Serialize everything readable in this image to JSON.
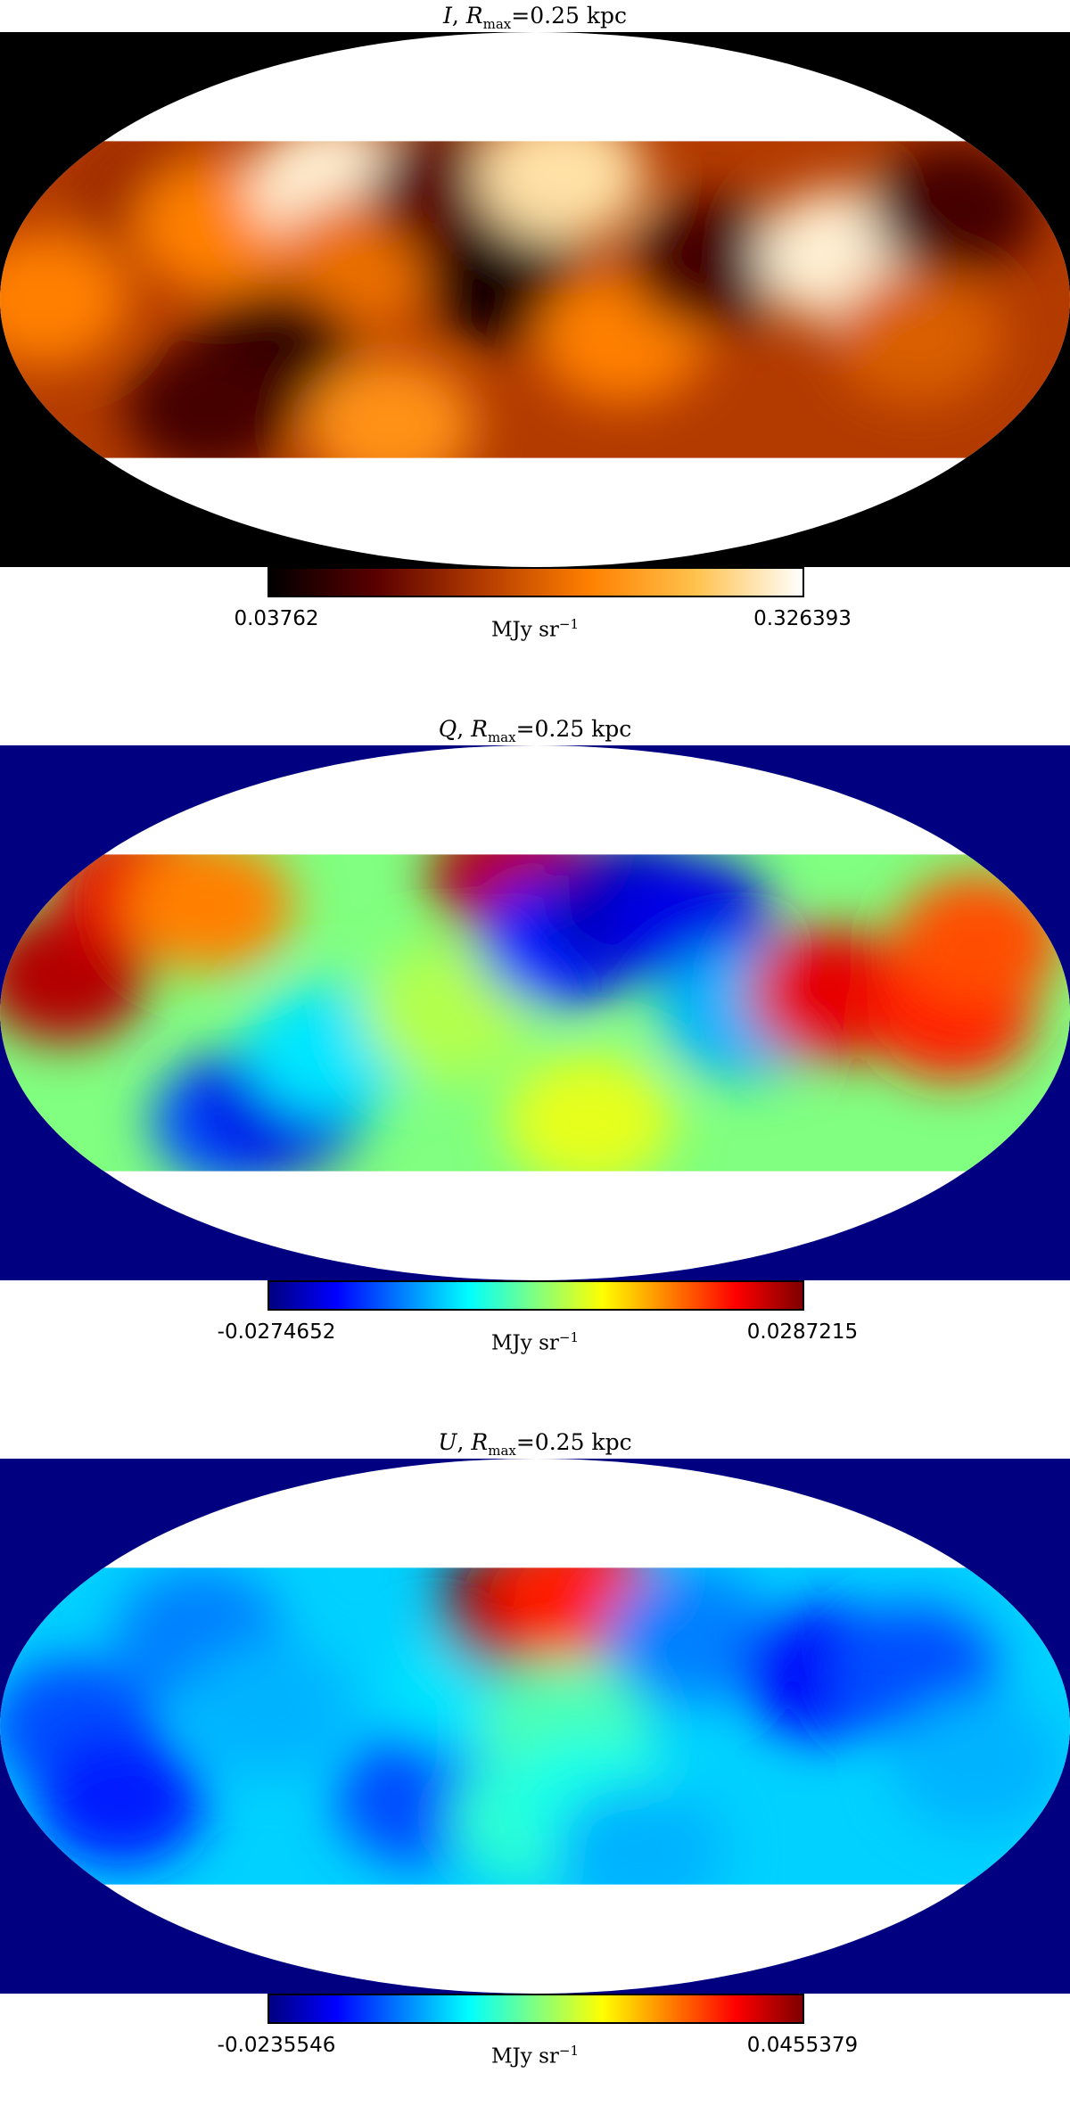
{
  "chart_data": [
    {
      "type": "heatmap",
      "title": {
        "symbol": "I",
        "sep": ",",
        "r": "R",
        "sub": "max",
        "value": "=0.25 kpc"
      },
      "colorbar": {
        "min": "0.03762",
        "max": "0.326393",
        "unit": "MJy sr",
        "unit_exp": "−1",
        "colormap": "afmhot"
      },
      "projection": "mollweide",
      "outside_color": "#000000",
      "latitude_band": [
        -45,
        45
      ],
      "blobs": [
        {
          "lon": 140,
          "lat": 30,
          "level": 0.35
        },
        {
          "lon": 110,
          "lat": 20,
          "level": 0.6
        },
        {
          "lon": 75,
          "lat": 32,
          "level": 0.95
        },
        {
          "lon": 60,
          "lat": 10,
          "level": 0.55
        },
        {
          "lon": 30,
          "lat": 30,
          "level": 0.2
        },
        {
          "lon": 10,
          "lat": 5,
          "level": 0.05
        },
        {
          "lon": -10,
          "lat": 35,
          "level": 0.9
        },
        {
          "lon": -30,
          "lat": -10,
          "level": 0.6
        },
        {
          "lon": -60,
          "lat": 10,
          "level": 0.15
        },
        {
          "lon": -105,
          "lat": 12,
          "level": 0.95
        },
        {
          "lon": -130,
          "lat": -10,
          "level": 0.5
        },
        {
          "lon": -150,
          "lat": 25,
          "level": 0.15
        },
        {
          "lon": 90,
          "lat": -15,
          "level": 0.1
        },
        {
          "lon": 55,
          "lat": -35,
          "level": 0.65
        },
        {
          "lon": 120,
          "lat": -30,
          "level": 0.15
        },
        {
          "lon": 165,
          "lat": 0,
          "level": 0.6
        }
      ],
      "background_level": 0.4
    },
    {
      "type": "heatmap",
      "title": {
        "symbol": "Q",
        "sep": ",",
        "r": "R",
        "sub": "max",
        "value": "=0.25 kpc"
      },
      "colorbar": {
        "min": "-0.0274652",
        "max": "0.0287215",
        "unit": "MJy sr",
        "unit_exp": "−1",
        "colormap": "jet"
      },
      "projection": "mollweide",
      "outside_color": "#000080",
      "latitude_band": [
        -45,
        45
      ],
      "blobs": [
        {
          "lon": 160,
          "lat": 10,
          "level": 0.95
        },
        {
          "lon": 150,
          "lat": 35,
          "level": 0.9
        },
        {
          "lon": 120,
          "lat": 30,
          "level": 0.75
        },
        {
          "lon": 110,
          "lat": -30,
          "level": 0.2
        },
        {
          "lon": 90,
          "lat": -25,
          "level": 0.1
        },
        {
          "lon": 70,
          "lat": -10,
          "level": 0.35
        },
        {
          "lon": 30,
          "lat": 0,
          "level": 0.55
        },
        {
          "lon": 8,
          "lat": 38,
          "level": 0.95
        },
        {
          "lon": -10,
          "lat": 20,
          "level": 0.15
        },
        {
          "lon": -35,
          "lat": 30,
          "level": 0.05
        },
        {
          "lon": -55,
          "lat": 25,
          "level": 0.1
        },
        {
          "lon": -70,
          "lat": 0,
          "level": 0.3
        },
        {
          "lon": -100,
          "lat": 5,
          "level": 0.9
        },
        {
          "lon": -140,
          "lat": 0,
          "level": 0.85
        },
        {
          "lon": -155,
          "lat": 20,
          "level": 0.8
        },
        {
          "lon": -20,
          "lat": -30,
          "level": 0.6
        }
      ],
      "background_level": 0.5
    },
    {
      "type": "heatmap",
      "title": {
        "symbol": "U",
        "sep": ",",
        "r": "R",
        "sub": "max",
        "value": "=0.25 kpc"
      },
      "colorbar": {
        "min": "-0.0235546",
        "max": "0.0455379",
        "unit": "MJy sr",
        "unit_exp": "−1",
        "colormap": "jet"
      },
      "projection": "mollweide",
      "outside_color": "#000080",
      "latitude_band": [
        -45,
        45
      ],
      "blobs": [
        {
          "lon": 155,
          "lat": 0,
          "level": 0.2
        },
        {
          "lon": 145,
          "lat": -20,
          "level": 0.15
        },
        {
          "lon": 120,
          "lat": 25,
          "level": 0.25
        },
        {
          "lon": 90,
          "lat": 5,
          "level": 0.3
        },
        {
          "lon": 40,
          "lat": -20,
          "level": 0.2
        },
        {
          "lon": 20,
          "lat": 10,
          "level": 0.35
        },
        {
          "lon": 5,
          "lat": 33,
          "level": 1.0
        },
        {
          "lon": -15,
          "lat": 37,
          "level": 0.85
        },
        {
          "lon": -10,
          "lat": 0,
          "level": 0.45
        },
        {
          "lon": 0,
          "lat": -25,
          "level": 0.42
        },
        {
          "lon": -20,
          "lat": -20,
          "level": 0.4
        },
        {
          "lon": -55,
          "lat": 25,
          "level": 0.25
        },
        {
          "lon": -100,
          "lat": 15,
          "level": 0.12
        },
        {
          "lon": -130,
          "lat": 15,
          "level": 0.2
        },
        {
          "lon": -150,
          "lat": -10,
          "level": 0.3
        },
        {
          "lon": -40,
          "lat": -35,
          "level": 0.3
        }
      ],
      "background_level": 0.33
    }
  ]
}
